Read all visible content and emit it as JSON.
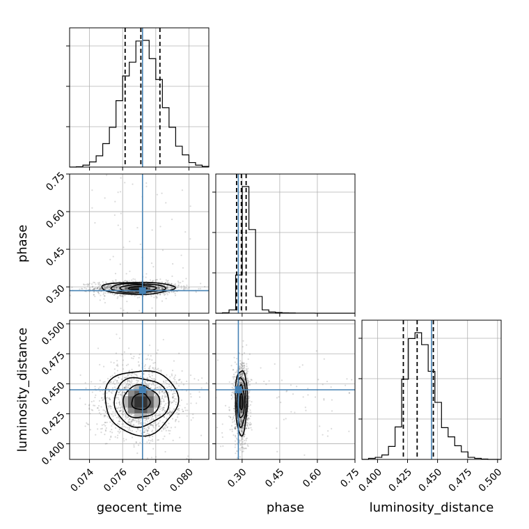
{
  "chart_data": {
    "type": "corner",
    "parameters": [
      "geocent_time",
      "phase",
      "luminosity_distance"
    ],
    "ranges": {
      "geocent_time": [
        0.0728,
        0.0812
      ],
      "phase": [
        0.195,
        0.75
      ],
      "luminosity_distance": [
        0.387,
        0.503
      ]
    },
    "ticks": {
      "geocent_time": [
        0.074,
        0.076,
        0.078,
        0.08
      ],
      "phase": [
        0.3,
        0.45,
        0.6,
        0.75
      ],
      "luminosity_distance": [
        0.4,
        0.425,
        0.45,
        0.475,
        0.5
      ]
    },
    "tick_labels": {
      "geocent_time": [
        "0.074",
        "0.076",
        "0.078",
        "0.080"
      ],
      "phase": [
        "0.30",
        "0.45",
        "0.60",
        "0.75"
      ],
      "luminosity_distance": [
        "0.400",
        "0.425",
        "0.450",
        "0.475",
        "0.500"
      ]
    },
    "truths": {
      "geocent_time": 0.0772,
      "phase": 0.285,
      "luminosity_distance": 0.445
    },
    "quantiles": {
      "geocent_time": [
        0.07615,
        0.0771,
        0.07825
      ],
      "phase": [
        0.278,
        0.297,
        0.316
      ],
      "luminosity_distance": [
        0.4215,
        0.433,
        0.4465
      ]
    },
    "histograms": {
      "geocent_time": {
        "bin_edges": [
          0.0728,
          0.0732,
          0.0736,
          0.074,
          0.0744,
          0.0748,
          0.0752,
          0.0756,
          0.076,
          0.0764,
          0.0768,
          0.0772,
          0.0776,
          0.078,
          0.0784,
          0.0788,
          0.0792,
          0.0796,
          0.08,
          0.0804,
          0.0808,
          0.0812
        ],
        "counts": [
          0,
          1,
          6,
          16,
          35,
          73,
          124,
          207,
          284,
          327,
          393,
          395,
          338,
          273,
          185,
          124,
          65,
          38,
          14,
          6,
          2
        ]
      },
      "phase": {
        "bin_edges": [
          0.195,
          0.2214,
          0.2479,
          0.2743,
          0.3007,
          0.3271,
          0.3536,
          0.38,
          0.4064,
          0.4329,
          0.4593,
          0.4857,
          0.5121,
          0.5386,
          0.565,
          0.5914,
          0.6179,
          0.6443,
          0.6707,
          0.6971,
          0.7236,
          0.75
        ],
        "counts": [
          0,
          4,
          28,
          320,
          1060,
          700,
          140,
          28,
          10,
          6,
          3,
          2,
          1,
          1,
          1,
          0,
          0,
          0,
          0,
          0,
          0
        ]
      },
      "luminosity_distance": {
        "bin_edges": [
          0.387,
          0.3925,
          0.3981,
          0.4036,
          0.4091,
          0.4146,
          0.4201,
          0.4257,
          0.4312,
          0.4367,
          0.4422,
          0.4478,
          0.4533,
          0.4588,
          0.4643,
          0.4698,
          0.4754,
          0.4809,
          0.4864,
          0.4919,
          0.4974,
          0.503
        ],
        "counts": [
          0,
          3,
          6,
          13,
          38,
          95,
          235,
          354,
          371,
          336,
          258,
          167,
          93,
          66,
          40,
          22,
          6,
          3,
          1,
          0,
          0
        ]
      }
    },
    "pairs": [
      {
        "x": "geocent_time",
        "y": "phase",
        "center": [
          0.0769,
          0.295
        ],
        "sigma": [
          0.0011,
          0.012
        ],
        "contour_sigmas": [
          0.5,
          1.0,
          1.5,
          2.0
        ]
      },
      {
        "x": "geocent_time",
        "y": "luminosity_distance",
        "center": [
          0.0771,
          0.435
        ],
        "sigma": [
          0.0011,
          0.0135
        ],
        "contour_sigmas": [
          0.5,
          1.0,
          1.5,
          2.0
        ]
      },
      {
        "x": "phase",
        "y": "luminosity_distance",
        "center": [
          0.297,
          0.435
        ],
        "sigma": [
          0.012,
          0.0135
        ],
        "contour_sigmas": [
          0.5,
          1.0,
          1.5,
          2.0
        ]
      }
    ]
  }
}
